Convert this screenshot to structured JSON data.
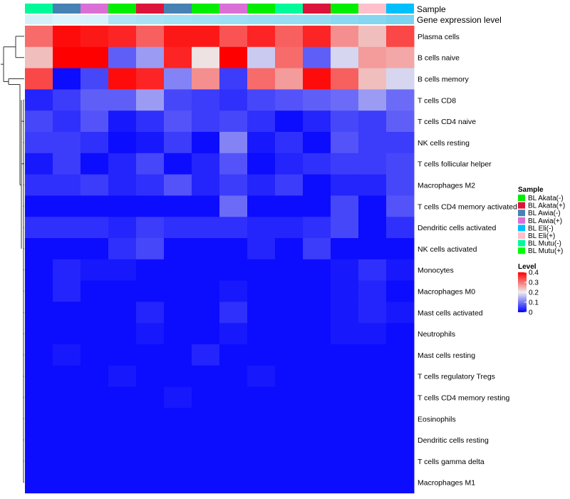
{
  "chart_data": {
    "type": "heatmap",
    "title": "",
    "annotation_labels": {
      "sample": "Sample",
      "expression": "Gene expression level"
    },
    "columns": [
      {
        "sample": "BL Mutu(-)",
        "expression": 0.27
      },
      {
        "sample": "BL Awia(-)",
        "expression": 0.24
      },
      {
        "sample": "BL Awia(+)",
        "expression": 0.26
      },
      {
        "sample": "BL Akata(-)",
        "expression": 0.42
      },
      {
        "sample": "BL Akata(+)",
        "expression": 0.44
      },
      {
        "sample": "BL Awia(-)",
        "expression": 0.46
      },
      {
        "sample": "BL Akata(-)",
        "expression": 0.47
      },
      {
        "sample": "BL Awia(+)",
        "expression": 0.49
      },
      {
        "sample": "BL Akata(-)",
        "expression": 0.5
      },
      {
        "sample": "BL Mutu(-)",
        "expression": 0.51
      },
      {
        "sample": "BL Akata(+)",
        "expression": 0.52
      },
      {
        "sample": "BL Akata(-)",
        "expression": 0.56
      },
      {
        "sample": "BL Eli(+)",
        "expression": 0.58
      },
      {
        "sample": "BL Eli(-)",
        "expression": 0.62
      }
    ],
    "rows": [
      "Plasma cells",
      "B cells naive",
      "B cells memory",
      "T cells CD8",
      "T cells CD4 naive",
      "NK cells resting",
      "T cells follicular helper",
      "Macrophages M2",
      "T cells CD4 memory activated",
      "Dendritic cells activated",
      "NK cells activated",
      "Monocytes",
      "Macrophages M0",
      "Mast cells activated",
      "Neutrophils",
      "Mast cells resting",
      "T cells regulatory  Tregs",
      "T cells CD4 memory resting",
      "Eosinophils",
      "Dendritic cells resting",
      "T cells gamma delta",
      "Macrophages M1"
    ],
    "values": [
      [
        0.31,
        0.39,
        0.38,
        0.37,
        0.32,
        0.38,
        0.38,
        0.33,
        0.37,
        0.32,
        0.37,
        0.28,
        0.24,
        0.34
      ],
      [
        0.24,
        0.4,
        0.4,
        0.08,
        0.13,
        0.37,
        0.21,
        0.4,
        0.17,
        0.31,
        0.08,
        0.18,
        0.27,
        0.26
      ],
      [
        0.34,
        0.01,
        0.06,
        0.39,
        0.37,
        0.11,
        0.28,
        0.05,
        0.31,
        0.27,
        0.39,
        0.32,
        0.24,
        0.18
      ],
      [
        0.03,
        0.05,
        0.08,
        0.08,
        0.13,
        0.06,
        0.05,
        0.04,
        0.06,
        0.07,
        0.08,
        0.09,
        0.13,
        0.09
      ],
      [
        0.06,
        0.04,
        0.07,
        0.02,
        0.04,
        0.07,
        0.05,
        0.06,
        0.04,
        0.01,
        0.03,
        0.06,
        0.05,
        0.08
      ],
      [
        0.05,
        0.05,
        0.04,
        0.01,
        0.02,
        0.05,
        0.01,
        0.11,
        0.02,
        0.04,
        0.01,
        0.07,
        0.05,
        0.05
      ],
      [
        0.02,
        0.05,
        0.01,
        0.03,
        0.06,
        0.01,
        0.03,
        0.07,
        0.01,
        0.03,
        0.04,
        0.05,
        0.05,
        0.06
      ],
      [
        0.04,
        0.04,
        0.05,
        0.03,
        0.04,
        0.07,
        0.03,
        0.05,
        0.03,
        0.05,
        0.01,
        0.03,
        0.03,
        0.06
      ],
      [
        0.01,
        0.01,
        0.01,
        0.01,
        0.01,
        0.01,
        0.01,
        0.09,
        0.01,
        0.01,
        0.01,
        0.06,
        0.01,
        0.07
      ],
      [
        0.04,
        0.04,
        0.04,
        0.03,
        0.05,
        0.04,
        0.04,
        0.04,
        0.03,
        0.03,
        0.04,
        0.06,
        0.01,
        0.04
      ],
      [
        0.01,
        0.01,
        0.01,
        0.04,
        0.06,
        0.01,
        0.01,
        0.01,
        0.03,
        0.01,
        0.05,
        0.01,
        0.01,
        0.01
      ],
      [
        0.01,
        0.03,
        0.02,
        0.02,
        0.01,
        0.01,
        0.01,
        0.01,
        0.01,
        0.01,
        0.01,
        0.02,
        0.04,
        0.02
      ],
      [
        0.01,
        0.03,
        0.01,
        0.01,
        0.01,
        0.01,
        0.01,
        0.02,
        0.01,
        0.01,
        0.01,
        0.02,
        0.03,
        0.01
      ],
      [
        0.01,
        0.01,
        0.01,
        0.01,
        0.03,
        0.01,
        0.01,
        0.04,
        0.01,
        0.01,
        0.01,
        0.02,
        0.03,
        0.02
      ],
      [
        0.01,
        0.01,
        0.01,
        0.01,
        0.02,
        0.01,
        0.01,
        0.02,
        0.01,
        0.01,
        0.01,
        0.02,
        0.02,
        0.01
      ],
      [
        0.01,
        0.02,
        0.01,
        0.01,
        0.01,
        0.01,
        0.03,
        0.01,
        0.01,
        0.01,
        0.01,
        0.01,
        0.01,
        0.01
      ],
      [
        0.01,
        0.01,
        0.01,
        0.02,
        0.01,
        0.01,
        0.01,
        0.01,
        0.02,
        0.01,
        0.01,
        0.01,
        0.01,
        0.01
      ],
      [
        0.01,
        0.01,
        0.01,
        0.01,
        0.01,
        0.02,
        0.01,
        0.01,
        0.01,
        0.01,
        0.01,
        0.01,
        0.01,
        0.01
      ],
      [
        0.01,
        0.01,
        0.01,
        0.01,
        0.01,
        0.01,
        0.01,
        0.01,
        0.01,
        0.01,
        0.01,
        0.01,
        0.01,
        0.01
      ],
      [
        0.01,
        0.01,
        0.01,
        0.01,
        0.01,
        0.01,
        0.01,
        0.01,
        0.01,
        0.01,
        0.01,
        0.01,
        0.01,
        0.01
      ],
      [
        0.01,
        0.01,
        0.01,
        0.01,
        0.01,
        0.01,
        0.01,
        0.01,
        0.01,
        0.01,
        0.01,
        0.01,
        0.01,
        0.01
      ],
      [
        0.01,
        0.01,
        0.01,
        0.01,
        0.01,
        0.01,
        0.01,
        0.01,
        0.01,
        0.01,
        0.01,
        0.01,
        0.01,
        0.01
      ]
    ],
    "color_scale": {
      "min": 0,
      "max": 0.4,
      "stops": [
        {
          "value": 0,
          "color": "#0000FF"
        },
        {
          "value": 0.2,
          "color": "#EEEEEE"
        },
        {
          "value": 0.4,
          "color": "#FF0000"
        }
      ]
    },
    "expression_scale": {
      "min": 0.2,
      "max": 0.7,
      "low_color": "#E6F7FC",
      "high_color": "#66CCEE"
    },
    "row_dendrogram": "visible",
    "legends": {
      "placement": "right",
      "sample": {
        "title": "Sample",
        "items": [
          {
            "label": "BL Akata(-)",
            "color": "#00EE00"
          },
          {
            "label": "BL Akata(+)",
            "color": "#DC143C"
          },
          {
            "label": "BL Awia(-)",
            "color": "#4682B4"
          },
          {
            "label": "BL Awia(+)",
            "color": "#DA70D6"
          },
          {
            "label": "BL Eli(-)",
            "color": "#00BFFF"
          },
          {
            "label": "BL Eli(+)",
            "color": "#FFC0CB"
          },
          {
            "label": "BL Mutu(-)",
            "color": "#00FA9A"
          },
          {
            "label": "BL Mutu(+)",
            "color": "#00FF00"
          }
        ]
      },
      "level": {
        "title": "Level",
        "ticks": [
          "0",
          "0.1",
          "0.2",
          "0.3",
          "0.4"
        ]
      }
    }
  }
}
